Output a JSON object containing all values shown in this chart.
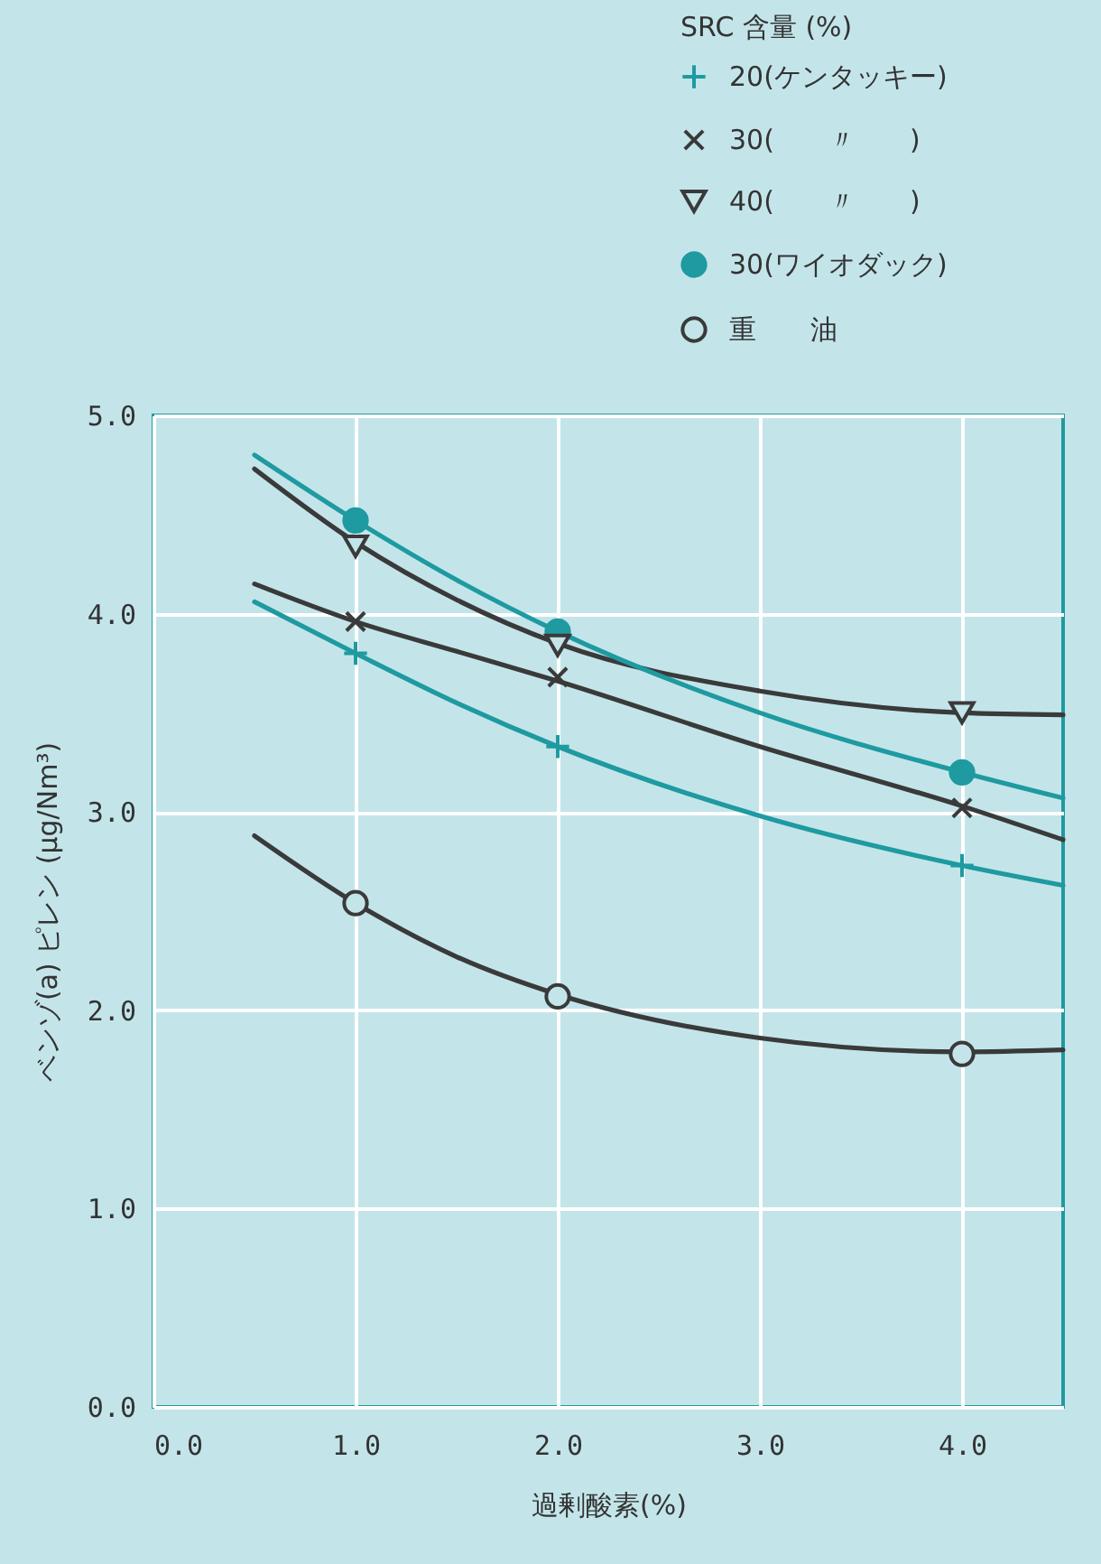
{
  "chart_data": {
    "type": "scatter",
    "xlabel": "過剰酸素(%)",
    "ylabel": "ベンゾ(a) ピレン (μg/Nm³)",
    "legend_title": "SRC 含量 (%)",
    "xlim": [
      0,
      4.5
    ],
    "ylim": [
      0,
      5
    ],
    "xticks": [
      {
        "value": 0,
        "label": "0.0"
      },
      {
        "value": 1,
        "label": "1.0"
      },
      {
        "value": 2,
        "label": "2.0"
      },
      {
        "value": 3,
        "label": "3.0"
      },
      {
        "value": 4,
        "label": "4.0"
      }
    ],
    "yticks": [
      {
        "value": 0,
        "label": "0.0"
      },
      {
        "value": 1,
        "label": "1.0"
      },
      {
        "value": 2,
        "label": "2.0"
      },
      {
        "value": 3,
        "label": "3.0"
      },
      {
        "value": 4,
        "label": "4.0"
      },
      {
        "value": 5,
        "label": "5.0"
      }
    ],
    "grid": true,
    "legend": "top right",
    "series": [
      {
        "name": "20(ケンタッキー)",
        "color": "#1e9aa0",
        "marker": "plus",
        "x": [
          1,
          2,
          4
        ],
        "values": [
          3.8,
          3.33,
          2.73
        ]
      },
      {
        "name": "30(　　〃　　)",
        "color": "#3a3a3a",
        "marker": "x",
        "x": [
          1,
          2,
          4
        ],
        "values": [
          3.96,
          3.68,
          3.02
        ]
      },
      {
        "name": "40(　　〃　　)",
        "color": "#3a3a3a",
        "marker": "triangle-down",
        "x": [
          1,
          2,
          4
        ],
        "values": [
          4.34,
          3.84,
          3.5
        ]
      },
      {
        "name": "30(ワイオダック)",
        "color": "#1e9aa0",
        "marker": "circle",
        "x": [
          1,
          2,
          4
        ],
        "values": [
          4.47,
          3.91,
          3.2
        ]
      },
      {
        "name": "重　　油",
        "color": "#3a3a3a",
        "marker": "circle-open",
        "x": [
          1,
          2,
          4
        ],
        "values": [
          2.54,
          2.07,
          1.78
        ]
      },
      {
        "type": "line",
        "color": "#1e9aa0",
        "x": [
          0.5,
          1,
          1.5,
          2,
          3,
          4,
          4.5
        ],
        "values": [
          4.06,
          3.8,
          3.55,
          3.33,
          2.98,
          2.73,
          2.63
        ]
      },
      {
        "type": "line",
        "color": "#3a3a3a",
        "x": [
          0.5,
          1,
          1.5,
          2,
          3,
          4,
          4.5
        ],
        "values": [
          4.15,
          3.96,
          3.81,
          3.66,
          3.33,
          3.03,
          2.86
        ]
      },
      {
        "type": "line",
        "color": "#3a3a3a",
        "x": [
          0.5,
          1,
          1.5,
          2,
          3,
          4,
          4.5
        ],
        "values": [
          4.73,
          4.36,
          4.07,
          3.85,
          3.61,
          3.5,
          3.49
        ]
      },
      {
        "type": "line",
        "color": "#1e9aa0",
        "x": [
          0.5,
          1,
          1.5,
          2,
          3,
          4,
          4.5
        ],
        "values": [
          4.8,
          4.47,
          4.17,
          3.91,
          3.5,
          3.2,
          3.07
        ]
      },
      {
        "type": "line",
        "color": "#3a3a3a",
        "x": [
          0.5,
          1,
          1.5,
          2,
          3,
          4,
          4.5
        ],
        "values": [
          2.88,
          2.54,
          2.27,
          2.08,
          1.86,
          1.79,
          1.8
        ]
      }
    ]
  }
}
